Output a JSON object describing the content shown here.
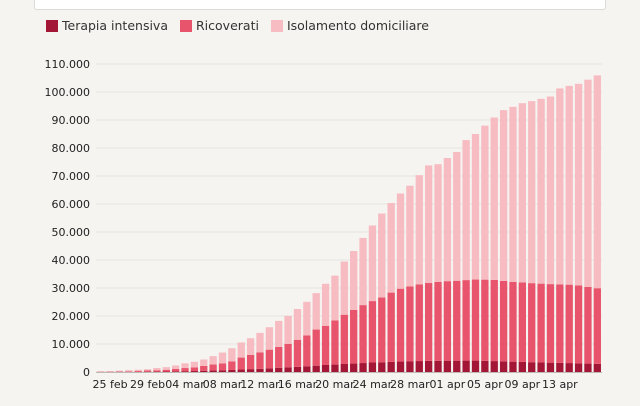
{
  "chart_data": {
    "type": "bar",
    "stacked": true,
    "grid": true,
    "legend_position": "top-left",
    "x": [
      "24 feb",
      "25 feb",
      "26 feb",
      "27 feb",
      "28 feb",
      "29 feb",
      "01 mar",
      "02 mar",
      "03 mar",
      "04 mar",
      "05 mar",
      "06 mar",
      "07 mar",
      "08 mar",
      "09 mar",
      "10 mar",
      "11 mar",
      "12 mar",
      "13 mar",
      "14 mar",
      "15 mar",
      "16 mar",
      "17 mar",
      "18 mar",
      "19 mar",
      "20 mar",
      "21 mar",
      "22 mar",
      "23 mar",
      "24 mar",
      "25 mar",
      "26 mar",
      "27 mar",
      "28 mar",
      "29 mar",
      "30 mar",
      "31 mar",
      "01 apr",
      "02 apr",
      "03 apr",
      "04 apr",
      "05 apr",
      "06 apr",
      "07 apr",
      "08 apr",
      "09 apr",
      "10 apr",
      "11 apr",
      "12 apr",
      "13 apr",
      "14 apr",
      "15 apr",
      "16 apr",
      "17 apr"
    ],
    "tick_labels": [
      "25 feb",
      "29 feb",
      "04 mar",
      "08 mar",
      "12 mar",
      "16 mar",
      "20 mar",
      "24 mar",
      "28 mar",
      "01 apr",
      "05 apr",
      "09 apr",
      "13 apr"
    ],
    "ylim": [
      0,
      110000
    ],
    "y_ticks": [
      "0",
      "10.000",
      "20.000",
      "30.000",
      "40.000",
      "50.000",
      "60.000",
      "70.000",
      "80.000",
      "90.000",
      "100.000",
      "110.000"
    ],
    "series": [
      {
        "name": "Terapia intensiva",
        "color": "#a41636",
        "values": [
          30,
          40,
          60,
          60,
          60,
          110,
          140,
          170,
          230,
          300,
          350,
          460,
          570,
          650,
          730,
          880,
          1030,
          1150,
          1330,
          1520,
          1670,
          1850,
          2060,
          2260,
          2500,
          2650,
          2860,
          3010,
          3200,
          3390,
          3490,
          3610,
          3730,
          3860,
          3910,
          3980,
          4020,
          4040,
          4050,
          4070,
          4070,
          3980,
          3900,
          3800,
          3700,
          3600,
          3500,
          3420,
          3340,
          3260,
          3190,
          3080,
          3000,
          2930
        ]
      },
      {
        "name": "Ricoverati",
        "color": "#e8546c",
        "values": [
          100,
          110,
          160,
          200,
          340,
          420,
          490,
          630,
          900,
          1110,
          1300,
          1700,
          2100,
          2400,
          3050,
          4270,
          5050,
          5820,
          6650,
          7430,
          8370,
          9660,
          11020,
          12900,
          14000,
          15760,
          17600,
          19200,
          20690,
          21940,
          23110,
          24750,
          26030,
          26680,
          27390,
          27800,
          28190,
          28400,
          28540,
          28750,
          28950,
          29010,
          28980,
          28720,
          28500,
          28400,
          28240,
          28140,
          28050,
          28020,
          28000,
          27850,
          27400,
          27000
        ]
      },
      {
        "name": "Isolamento domiciliare",
        "color": "#f6bcc1",
        "values": [
          100,
          130,
          250,
          390,
          430,
          460,
          800,
          940,
          1200,
          1690,
          2000,
          2300,
          3000,
          3900,
          4700,
          5400,
          6000,
          7000,
          8000,
          9300,
          10000,
          11000,
          12000,
          13000,
          15000,
          16000,
          19000,
          21000,
          24000,
          27000,
          30000,
          32000,
          34000,
          36000,
          39000,
          42000,
          42000,
          44000,
          46000,
          50000,
          52000,
          55000,
          58000,
          61000,
          62500,
          64000,
          65000,
          66000,
          67000,
          70000,
          71000,
          72000,
          74000,
          76000
        ]
      }
    ]
  }
}
